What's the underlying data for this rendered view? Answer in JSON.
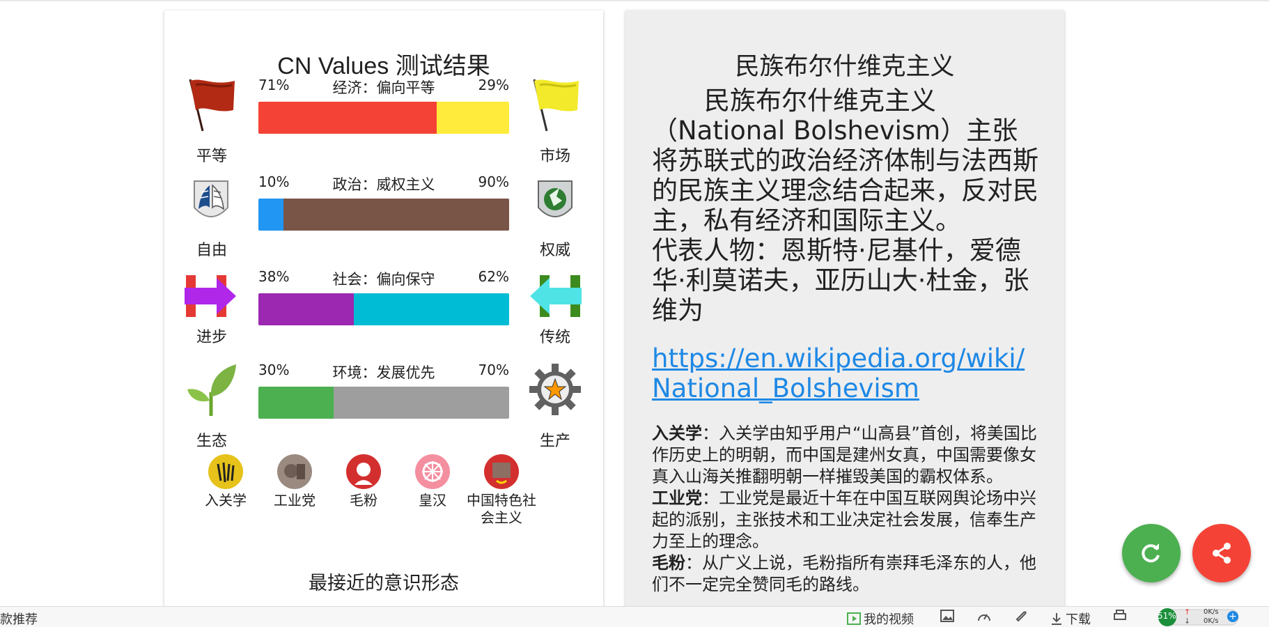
{
  "results": {
    "title": "CN Values 测试结果",
    "axes": [
      {
        "left_label": "平等",
        "right_label": "市场",
        "left_pct": "71%",
        "right_pct": "29%",
        "left_value": 71,
        "name": "经济：偏向平等",
        "left_color": "#f44336",
        "right_color": "#ffeb3b"
      },
      {
        "left_label": "自由",
        "right_label": "权威",
        "left_pct": "10%",
        "right_pct": "90%",
        "left_value": 10,
        "name": "政治：威权主义",
        "left_color": "#2196f3",
        "right_color": "#795548"
      },
      {
        "left_label": "进步",
        "right_label": "传统",
        "left_pct": "38%",
        "right_pct": "62%",
        "left_value": 38,
        "name": "社会：偏向保守",
        "left_color": "#9c27b0",
        "right_color": "#00bcd4"
      },
      {
        "left_label": "生态",
        "right_label": "生产",
        "left_pct": "30%",
        "right_pct": "70%",
        "left_value": 30,
        "name": "环境：发展优先",
        "left_color": "#4caf50",
        "right_color": "#9e9e9e"
      }
    ],
    "ideologies": [
      {
        "name": "入关学",
        "color": "#e6c21a"
      },
      {
        "name": "工业党",
        "color": "#9a8a80"
      },
      {
        "name": "毛粉",
        "color": "#d32f2f"
      },
      {
        "name": "皇汉",
        "color": "#f48fa0"
      },
      {
        "name": "中国特色社会主义",
        "color": "#d32f2f"
      }
    ],
    "closest_label": "最接近的意识形态",
    "closest_value": "民族布尔什维克主义"
  },
  "detail": {
    "title": "民族布尔什维克主义",
    "description": "民族布尔什维克主义（National Bolshevism）主张将苏联式的政治经济体制与法西斯的民族主义理念结合起来，反对民主，私有经济和国际主义。",
    "representatives": "代表人物：恩斯特·尼基什，爱德华·利莫诺夫，亚历山大·杜金，张维为",
    "link": "https://en.wikipedia.org/wiki/National_Bolshevism",
    "notes": [
      {
        "term": "入关学",
        "text": "：入关学由知乎用户“山高县”首创，将美国比作历史上的明朝，而中国是建州女真，中国需要像女真入山海关推翻明朝一样摧毁美国的霸权体系。"
      },
      {
        "term": "工业党",
        "text": "：工业党是最近十年在中国互联网舆论场中兴起的派别，主张技术和工业决定社会发展，信奉生产力至上的理念。"
      },
      {
        "term": "毛粉",
        "text": "：从广义上说，毛粉指所有崇拜毛泽东的人，他们不一定完全赞同毛的路线。"
      }
    ]
  },
  "statusbar": {
    "left_text": "款推荐",
    "video": "我的视频",
    "download": "下载",
    "percent": "51%",
    "up_speed": "0K/s",
    "down_speed": "0K/s"
  }
}
